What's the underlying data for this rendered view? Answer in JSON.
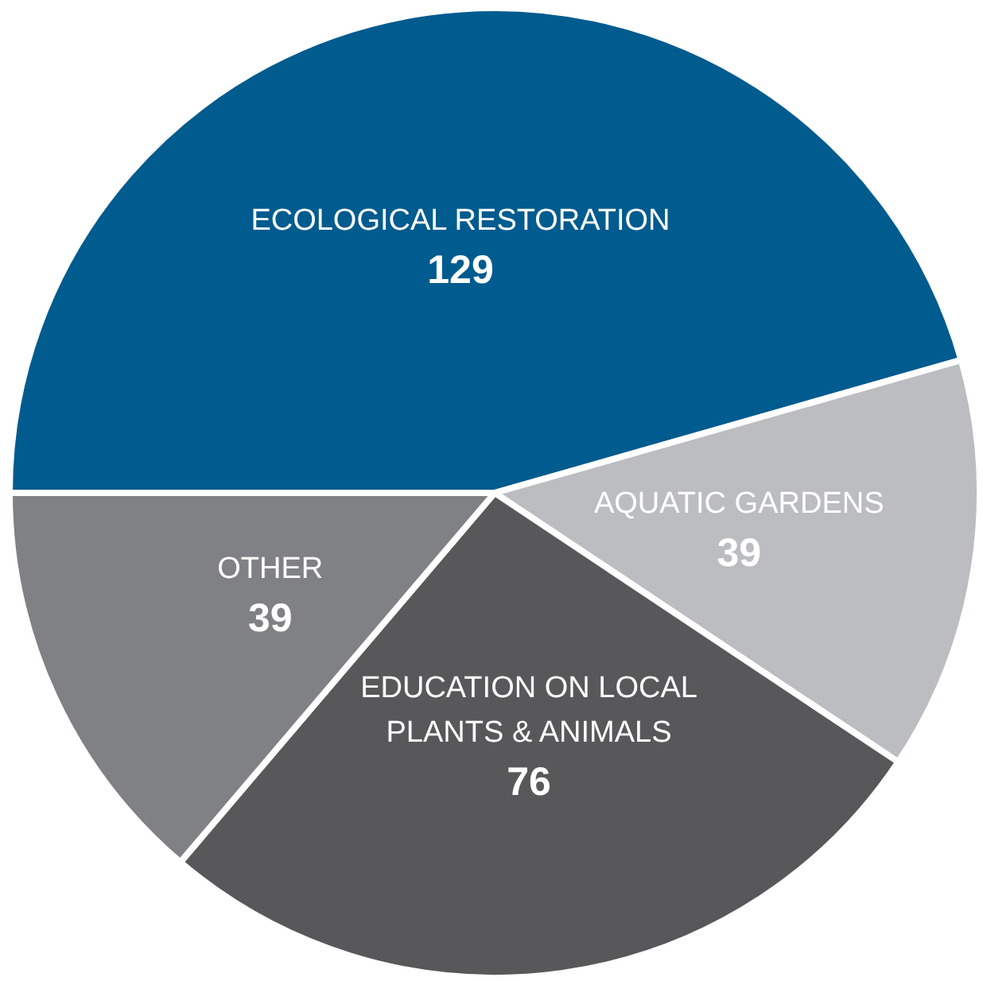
{
  "chart_data": {
    "type": "pie",
    "categories": [
      "ECOLOGICAL RESTORATION",
      "AQUATIC GARDENS",
      "EDUCATION ON LOCAL PLANTS & ANIMALS",
      "OTHER"
    ],
    "values": [
      129,
      39,
      76,
      39
    ],
    "colors": [
      "#005b8f",
      "#bcbdc0",
      "#58585a",
      "#808184"
    ],
    "data_labels": true,
    "legend": false
  }
}
